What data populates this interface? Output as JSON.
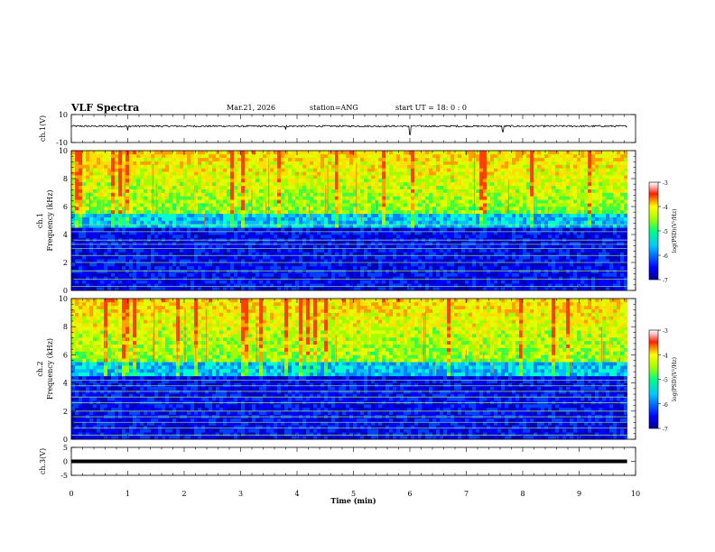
{
  "header": {
    "title": "VLF Spectra",
    "date": "Mar.21, 2026",
    "station": "station=ANG",
    "start_ut": "start UT =  18: 0  : 0"
  },
  "chart_data": [
    {
      "type": "line",
      "name": "ch1-waveform",
      "ylabel": "ch.1(V)",
      "ylim": [
        -10,
        10
      ],
      "y_tick_labels": [
        "10",
        "-10"
      ],
      "x_range_min": [
        0,
        9.85
      ],
      "baseline_value": 1.7,
      "noise_amplitude": 0.6,
      "spikes_min": [
        1.0,
        3.8,
        6.0,
        7.65
      ],
      "spike_depth": [
        -3,
        -2.5,
        -6,
        -4
      ]
    },
    {
      "type": "heatmap",
      "name": "ch1-spectrogram",
      "ylabel": "Frequency (kHz)",
      "channel_label": "ch.1",
      "ylim": [
        0,
        10
      ],
      "y_tick_labels": [
        "0",
        "2",
        "4",
        "6",
        "8",
        "10"
      ],
      "x_range_min": [
        0,
        9.85
      ],
      "line_freqs_khz": [
        0.3,
        0.8,
        1.4,
        2.0,
        2.5,
        3.0,
        3.3,
        3.6,
        4.2,
        4.7
      ],
      "colorbar": {
        "label": "log(PSD)(V²/Hz)",
        "range": [
          -7,
          -3
        ],
        "tick_labels": [
          "-3",
          "-4",
          "-5",
          "-6",
          "-7"
        ]
      }
    },
    {
      "type": "heatmap",
      "name": "ch2-spectrogram",
      "ylabel": "Frequency (kHz)",
      "channel_label": "ch.2",
      "ylim": [
        0,
        10
      ],
      "y_tick_labels": [
        "0",
        "2",
        "4",
        "6",
        "8",
        "10"
      ],
      "x_range_min": [
        0,
        9.85
      ],
      "line_freqs_khz": [
        0.3,
        0.8,
        1.2,
        1.6,
        2.0,
        2.6,
        3.0,
        3.4,
        3.8,
        4.2
      ],
      "colorbar": {
        "label": "log(PSD)(V²/Hz)",
        "range": [
          -7,
          -3
        ],
        "tick_labels": [
          "-3",
          "-4",
          "-5",
          "-6",
          "-7"
        ]
      }
    },
    {
      "type": "line",
      "name": "ch3-waveform",
      "ylabel": "ch.3(V)",
      "ylim": [
        -5,
        5
      ],
      "y_tick_labels": [
        "5",
        "0",
        "-5"
      ],
      "x_range_min": [
        0,
        9.85
      ],
      "baseline_value": 0
    }
  ],
  "xaxis": {
    "label": "Time (min)",
    "range": [
      0,
      10
    ],
    "tick_labels": [
      "0",
      "1",
      "2",
      "3",
      "4",
      "5",
      "6",
      "7",
      "8",
      "9",
      "10"
    ]
  }
}
